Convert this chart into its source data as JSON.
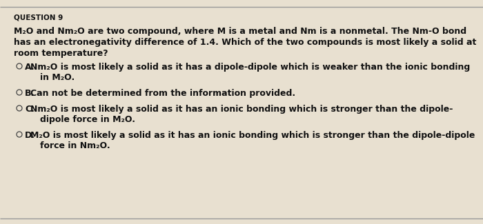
{
  "title": "QUESTION 9",
  "bg_color": "#e8e0d0",
  "text_color": "#111111",
  "border_color": "#999999",
  "question_line1": "M₂O and Nm₂O are two compound, where M is a metal and Nm is a nonmetal. The Nm-O bond",
  "question_line2": "has an electronegativity difference of 1.4. Which of the two compounds is most likely a solid at",
  "question_line3": "room temperature?",
  "options": [
    {
      "label": "A",
      "line1": "Nm₂O is most likely a solid as it has a dipole-dipole which is weaker than the ionic bonding",
      "line2": "in M₂O."
    },
    {
      "label": "B",
      "line1": "Can not be determined from the information provided.",
      "line2": null
    },
    {
      "label": "C",
      "line1": "Nm₂O is most likely a solid as it has an ionic bonding which is stronger than the dipole-",
      "line2": "dipole force in M₂O."
    },
    {
      "label": "D",
      "line1": "M₂O is most likely a solid as it has an ionic bonding which is stronger than the dipole-dipole",
      "line2": "force in Nm₂O."
    }
  ],
  "fig_width": 7.0,
  "fig_height": 3.25,
  "dpi": 100,
  "title_fontsize": 7.5,
  "body_fontsize": 9.0,
  "option_fontsize": 9.0
}
